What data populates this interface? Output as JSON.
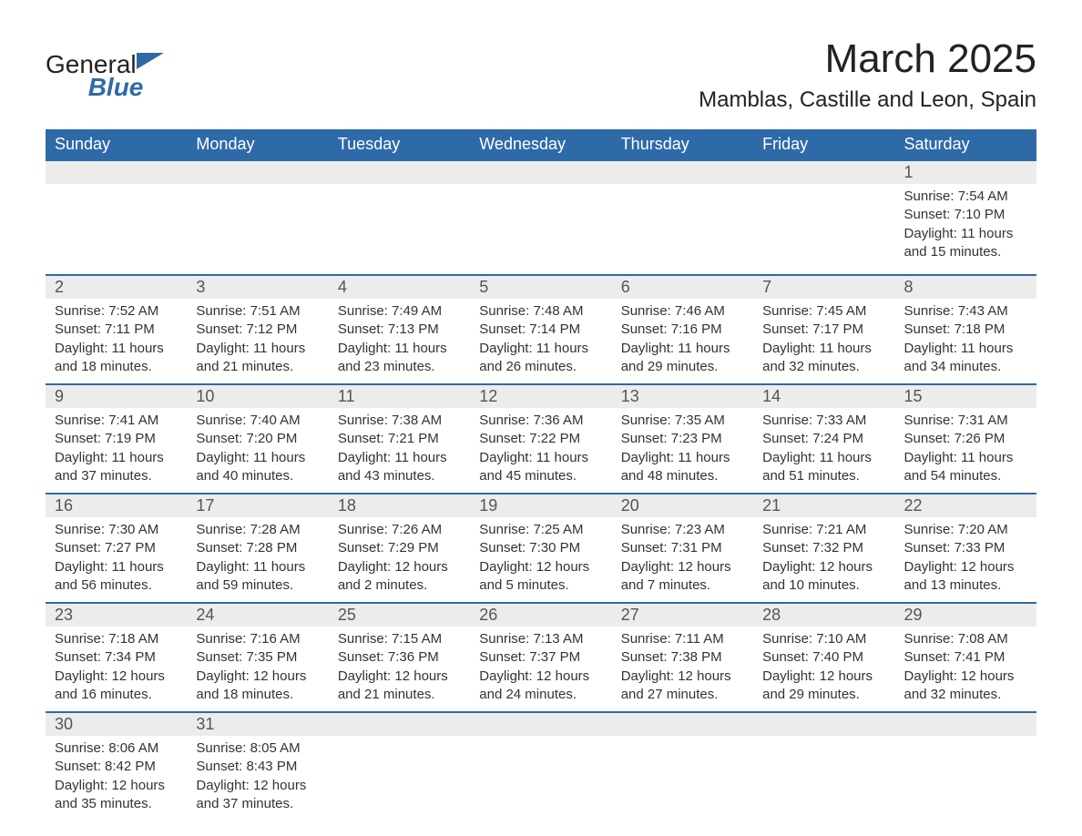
{
  "brand": {
    "name1": "General",
    "name2": "Blue"
  },
  "title": "March 2025",
  "location": "Mamblas, Castille and Leon, Spain",
  "colors": {
    "header_bg": "#2f6aa8",
    "header_text": "#ffffff",
    "daynum_bg": "#ececec",
    "row_border": "#2f6aa8",
    "body_text": "#333333",
    "page_bg": "#ffffff"
  },
  "weekdays": [
    "Sunday",
    "Monday",
    "Tuesday",
    "Wednesday",
    "Thursday",
    "Friday",
    "Saturday"
  ],
  "weeks": [
    {
      "nums": [
        "",
        "",
        "",
        "",
        "",
        "",
        "1"
      ],
      "cells": [
        "",
        "",
        "",
        "",
        "",
        "",
        "Sunrise: 7:54 AM\nSunset: 7:10 PM\nDaylight: 11 hours and 15 minutes."
      ]
    },
    {
      "nums": [
        "2",
        "3",
        "4",
        "5",
        "6",
        "7",
        "8"
      ],
      "cells": [
        "Sunrise: 7:52 AM\nSunset: 7:11 PM\nDaylight: 11 hours and 18 minutes.",
        "Sunrise: 7:51 AM\nSunset: 7:12 PM\nDaylight: 11 hours and 21 minutes.",
        "Sunrise: 7:49 AM\nSunset: 7:13 PM\nDaylight: 11 hours and 23 minutes.",
        "Sunrise: 7:48 AM\nSunset: 7:14 PM\nDaylight: 11 hours and 26 minutes.",
        "Sunrise: 7:46 AM\nSunset: 7:16 PM\nDaylight: 11 hours and 29 minutes.",
        "Sunrise: 7:45 AM\nSunset: 7:17 PM\nDaylight: 11 hours and 32 minutes.",
        "Sunrise: 7:43 AM\nSunset: 7:18 PM\nDaylight: 11 hours and 34 minutes."
      ]
    },
    {
      "nums": [
        "9",
        "10",
        "11",
        "12",
        "13",
        "14",
        "15"
      ],
      "cells": [
        "Sunrise: 7:41 AM\nSunset: 7:19 PM\nDaylight: 11 hours and 37 minutes.",
        "Sunrise: 7:40 AM\nSunset: 7:20 PM\nDaylight: 11 hours and 40 minutes.",
        "Sunrise: 7:38 AM\nSunset: 7:21 PM\nDaylight: 11 hours and 43 minutes.",
        "Sunrise: 7:36 AM\nSunset: 7:22 PM\nDaylight: 11 hours and 45 minutes.",
        "Sunrise: 7:35 AM\nSunset: 7:23 PM\nDaylight: 11 hours and 48 minutes.",
        "Sunrise: 7:33 AM\nSunset: 7:24 PM\nDaylight: 11 hours and 51 minutes.",
        "Sunrise: 7:31 AM\nSunset: 7:26 PM\nDaylight: 11 hours and 54 minutes."
      ]
    },
    {
      "nums": [
        "16",
        "17",
        "18",
        "19",
        "20",
        "21",
        "22"
      ],
      "cells": [
        "Sunrise: 7:30 AM\nSunset: 7:27 PM\nDaylight: 11 hours and 56 minutes.",
        "Sunrise: 7:28 AM\nSunset: 7:28 PM\nDaylight: 11 hours and 59 minutes.",
        "Sunrise: 7:26 AM\nSunset: 7:29 PM\nDaylight: 12 hours and 2 minutes.",
        "Sunrise: 7:25 AM\nSunset: 7:30 PM\nDaylight: 12 hours and 5 minutes.",
        "Sunrise: 7:23 AM\nSunset: 7:31 PM\nDaylight: 12 hours and 7 minutes.",
        "Sunrise: 7:21 AM\nSunset: 7:32 PM\nDaylight: 12 hours and 10 minutes.",
        "Sunrise: 7:20 AM\nSunset: 7:33 PM\nDaylight: 12 hours and 13 minutes."
      ]
    },
    {
      "nums": [
        "23",
        "24",
        "25",
        "26",
        "27",
        "28",
        "29"
      ],
      "cells": [
        "Sunrise: 7:18 AM\nSunset: 7:34 PM\nDaylight: 12 hours and 16 minutes.",
        "Sunrise: 7:16 AM\nSunset: 7:35 PM\nDaylight: 12 hours and 18 minutes.",
        "Sunrise: 7:15 AM\nSunset: 7:36 PM\nDaylight: 12 hours and 21 minutes.",
        "Sunrise: 7:13 AM\nSunset: 7:37 PM\nDaylight: 12 hours and 24 minutes.",
        "Sunrise: 7:11 AM\nSunset: 7:38 PM\nDaylight: 12 hours and 27 minutes.",
        "Sunrise: 7:10 AM\nSunset: 7:40 PM\nDaylight: 12 hours and 29 minutes.",
        "Sunrise: 7:08 AM\nSunset: 7:41 PM\nDaylight: 12 hours and 32 minutes."
      ]
    },
    {
      "nums": [
        "30",
        "31",
        "",
        "",
        "",
        "",
        ""
      ],
      "cells": [
        "Sunrise: 8:06 AM\nSunset: 8:42 PM\nDaylight: 12 hours and 35 minutes.",
        "Sunrise: 8:05 AM\nSunset: 8:43 PM\nDaylight: 12 hours and 37 minutes.",
        "",
        "",
        "",
        "",
        ""
      ]
    }
  ]
}
